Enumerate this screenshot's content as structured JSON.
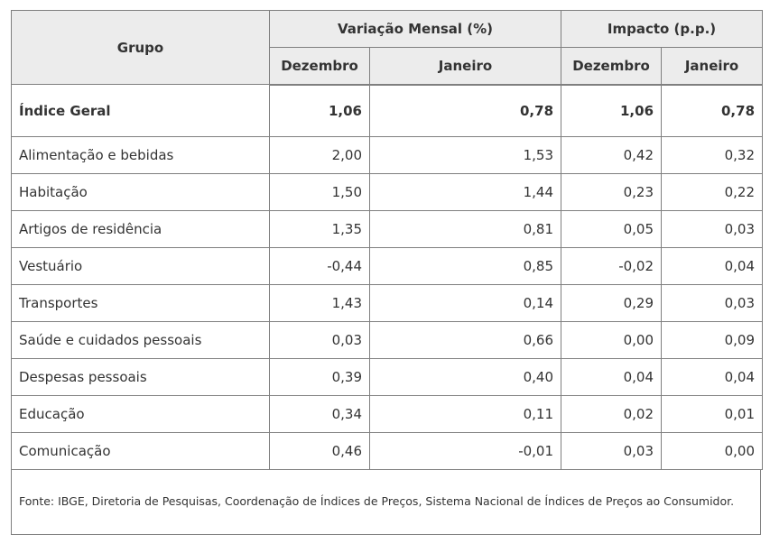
{
  "header": {
    "group_label": "Grupo",
    "variacao_label": "Variação Mensal (%)",
    "impacto_label": "Impacto (p.p.)",
    "sub": [
      "Dezembro",
      "Janeiro",
      "Dezembro",
      "Janeiro"
    ]
  },
  "rows": [
    {
      "grupo": "Índice Geral",
      "var_dez": "1,06",
      "var_jan": "0,78",
      "imp_dez": "1,06",
      "imp_jan": "0,78"
    },
    {
      "grupo": "Alimentação e bebidas",
      "var_dez": "2,00",
      "var_jan": "1,53",
      "imp_dez": "0,42",
      "imp_jan": "0,32"
    },
    {
      "grupo": "Habitação",
      "var_dez": "1,50",
      "var_jan": "1,44",
      "imp_dez": "0,23",
      "imp_jan": "0,22"
    },
    {
      "grupo": "Artigos de residência",
      "var_dez": "1,35",
      "var_jan": "0,81",
      "imp_dez": "0,05",
      "imp_jan": "0,03"
    },
    {
      "grupo": "Vestuário",
      "var_dez": "-0,44",
      "var_jan": "0,85",
      "imp_dez": "-0,02",
      "imp_jan": "0,04"
    },
    {
      "grupo": "Transportes",
      "var_dez": "1,43",
      "var_jan": "0,14",
      "imp_dez": "0,29",
      "imp_jan": "0,03"
    },
    {
      "grupo": "Saúde e cuidados pessoais",
      "var_dez": "0,03",
      "var_jan": "0,66",
      "imp_dez": "0,00",
      "imp_jan": "0,09"
    },
    {
      "grupo": "Despesas pessoais",
      "var_dez": "0,39",
      "var_jan": "0,40",
      "imp_dez": "0,04",
      "imp_jan": "0,04"
    },
    {
      "grupo": "Educação",
      "var_dez": "0,34",
      "var_jan": "0,11",
      "imp_dez": "0,02",
      "imp_jan": "0,01"
    },
    {
      "grupo": "Comunicação",
      "var_dez": "0,46",
      "var_jan": "-0,01",
      "imp_dez": "0,03",
      "imp_jan": "0,00"
    }
  ],
  "footer": "Fonte: IBGE, Diretoria de Pesquisas, Coordenação de Índices de Preços, Sistema Nacional de Índices de Preços ao Consumidor."
}
